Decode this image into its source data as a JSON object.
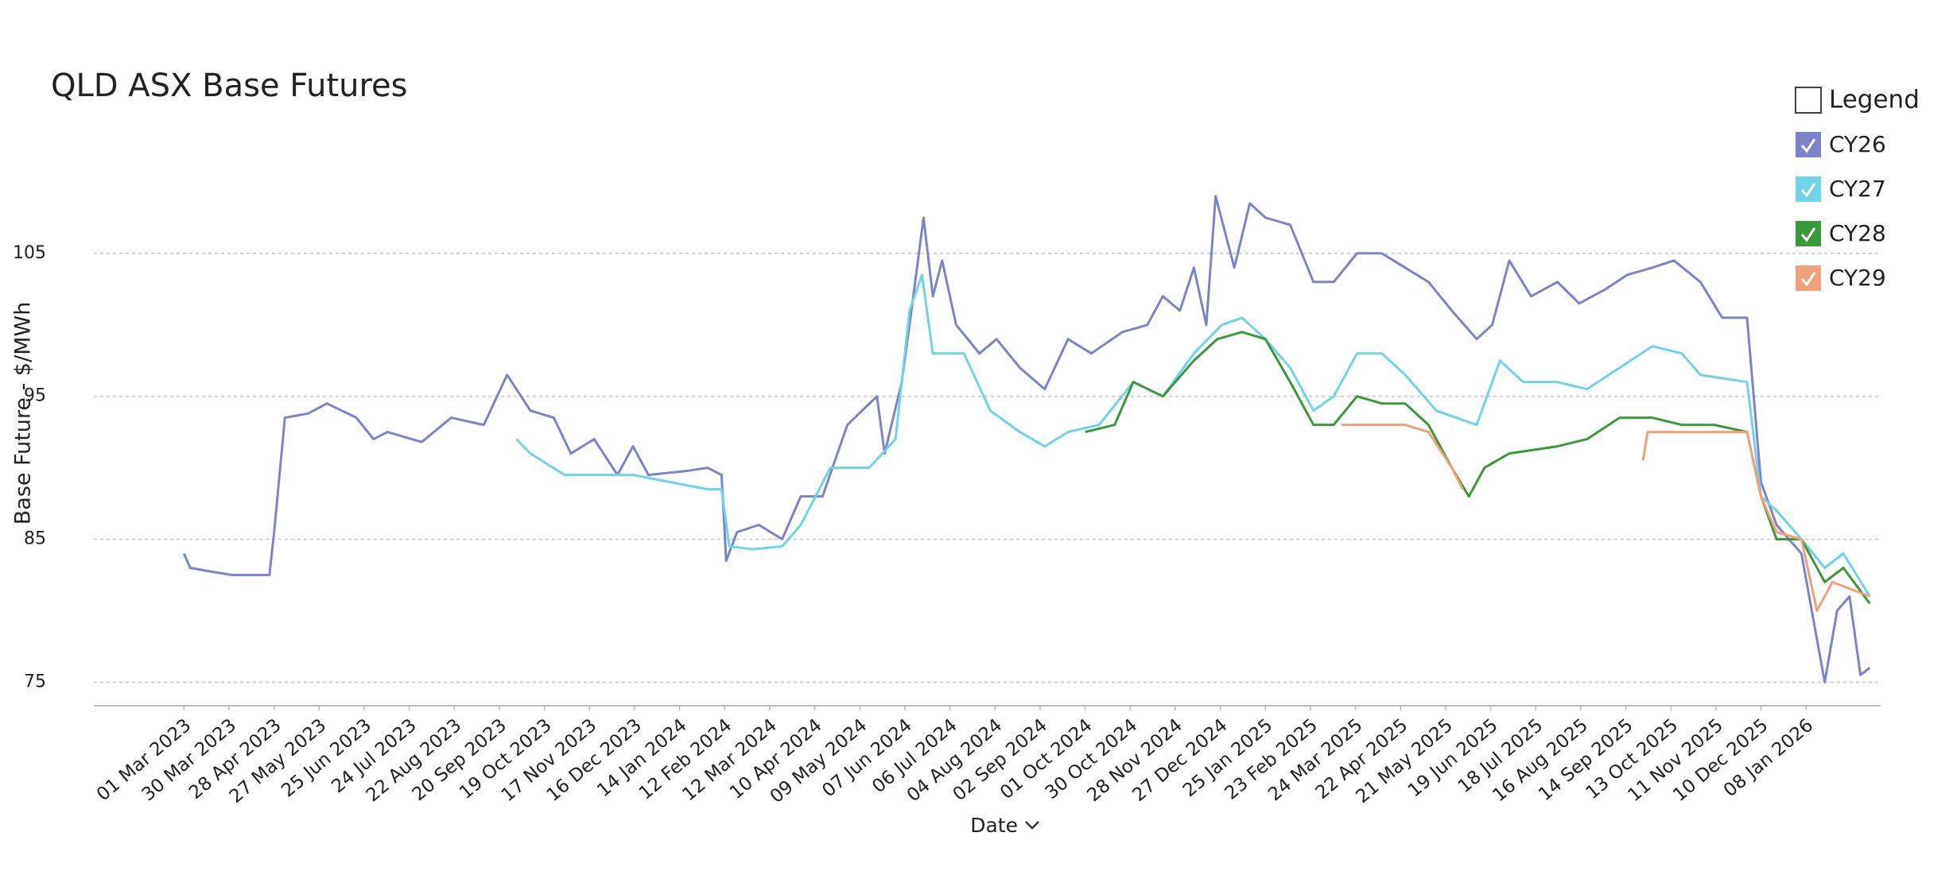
{
  "chart_data": {
    "type": "line",
    "title": "QLD ASX Base Futures",
    "x_label": "Date",
    "y_label": "Base Future - $/MWh",
    "ylim": [
      73.35,
      114
    ],
    "yticks": [
      75,
      85,
      95,
      105
    ],
    "grid": true,
    "xlim": [
      "2023-01-02",
      "2026-02-25"
    ],
    "xticks": [
      {
        "value": "2023-03-01",
        "label": "01 Mar 2023"
      },
      {
        "value": "2023-03-30",
        "label": "30 Mar 2023"
      },
      {
        "value": "2023-04-28",
        "label": "28 Apr 2023"
      },
      {
        "value": "2023-05-27",
        "label": "27 May 2023"
      },
      {
        "value": "2023-06-25",
        "label": "25 Jun 2023"
      },
      {
        "value": "2023-07-24",
        "label": "24 Jul 2023"
      },
      {
        "value": "2023-08-22",
        "label": "22 Aug 2023"
      },
      {
        "value": "2023-09-20",
        "label": "20 Sep 2023"
      },
      {
        "value": "2023-10-19",
        "label": "19 Oct 2023"
      },
      {
        "value": "2023-11-17",
        "label": "17 Nov 2023"
      },
      {
        "value": "2023-12-16",
        "label": "16 Dec 2023"
      },
      {
        "value": "2024-01-14",
        "label": "14 Jan 2024"
      },
      {
        "value": "2024-02-12",
        "label": "12 Feb 2024"
      },
      {
        "value": "2024-03-12",
        "label": "12 Mar 2024"
      },
      {
        "value": "2024-04-10",
        "label": "10 Apr 2024"
      },
      {
        "value": "2024-05-09",
        "label": "09 May 2024"
      },
      {
        "value": "2024-06-07",
        "label": "07 Jun 2024"
      },
      {
        "value": "2024-07-06",
        "label": "06 Jul 2024"
      },
      {
        "value": "2024-08-04",
        "label": "04 Aug 2024"
      },
      {
        "value": "2024-09-02",
        "label": "02 Sep 2024"
      },
      {
        "value": "2024-10-01",
        "label": "01 Oct 2024"
      },
      {
        "value": "2024-10-30",
        "label": "30 Oct 2024"
      },
      {
        "value": "2024-11-28",
        "label": "28 Nov 2024"
      },
      {
        "value": "2024-12-27",
        "label": "27 Dec 2024"
      },
      {
        "value": "2025-01-25",
        "label": "25 Jan 2025"
      },
      {
        "value": "2025-02-23",
        "label": "23 Feb 2025"
      },
      {
        "value": "2025-03-24",
        "label": "24 Mar 2025"
      },
      {
        "value": "2025-04-22",
        "label": "22 Apr 2025"
      },
      {
        "value": "2025-05-21",
        "label": "21 May 2025"
      },
      {
        "value": "2025-06-19",
        "label": "19 Jun 2025"
      },
      {
        "value": "2025-07-18",
        "label": "18 Jul 2025"
      },
      {
        "value": "2025-08-16",
        "label": "16 Aug 2025"
      },
      {
        "value": "2025-09-14",
        "label": "14 Sep 2025"
      },
      {
        "value": "2025-10-13",
        "label": "13 Oct 2025"
      },
      {
        "value": "2025-11-11",
        "label": "11 Nov 2025"
      },
      {
        "value": "2025-12-10",
        "label": "10 Dec 2025"
      },
      {
        "value": "2026-01-08",
        "label": "08 Jan 2026"
      }
    ],
    "legend": {
      "title": "Legend",
      "position": "top-right"
    },
    "series": [
      {
        "name": "CY26",
        "color": "#7b84c8",
        "x": [
          "2023-03-01",
          "2023-03-05",
          "2023-03-15",
          "2023-04-01",
          "2023-04-25",
          "2023-04-28",
          "2023-05-05",
          "2023-05-20",
          "2023-06-01",
          "2023-06-20",
          "2023-07-01",
          "2023-07-10",
          "2023-08-01",
          "2023-08-20",
          "2023-09-10",
          "2023-09-25",
          "2023-10-10",
          "2023-10-25",
          "2023-11-05",
          "2023-11-20",
          "2023-12-05",
          "2023-12-15",
          "2023-12-25",
          "2024-01-20",
          "2024-02-01",
          "2024-02-10",
          "2024-02-13",
          "2024-02-20",
          "2024-03-05",
          "2024-03-20",
          "2024-04-01",
          "2024-04-15",
          "2024-05-01",
          "2024-05-20",
          "2024-05-25",
          "2024-06-05",
          "2024-06-10",
          "2024-06-19",
          "2024-06-25",
          "2024-07-01",
          "2024-07-10",
          "2024-07-25",
          "2024-08-05",
          "2024-08-20",
          "2024-09-05",
          "2024-09-20",
          "2024-10-05",
          "2024-10-25",
          "2024-11-10",
          "2024-11-20",
          "2024-12-01",
          "2024-12-10",
          "2024-12-18",
          "2024-12-24",
          "2025-01-05",
          "2025-01-15",
          "2025-01-25",
          "2025-02-10",
          "2025-02-25",
          "2025-03-10",
          "2025-03-25",
          "2025-04-10",
          "2025-04-25",
          "2025-05-10",
          "2025-05-25",
          "2025-06-10",
          "2025-06-20",
          "2025-07-01",
          "2025-07-15",
          "2025-08-01",
          "2025-08-15",
          "2025-09-01",
          "2025-09-15",
          "2025-10-01",
          "2025-10-15",
          "2025-11-01",
          "2025-11-15",
          "2025-12-01",
          "2025-12-10",
          "2025-12-20",
          "2026-01-05",
          "2026-01-15",
          "2026-01-20",
          "2026-01-28",
          "2026-02-05",
          "2026-02-12",
          "2026-02-18"
        ],
        "values": [
          84,
          83,
          82.8,
          82.5,
          82.5,
          85.5,
          93.5,
          93.8,
          94.5,
          93.5,
          92,
          92.5,
          91.8,
          93.5,
          93,
          96.5,
          94,
          93.5,
          91,
          92,
          89.5,
          91.5,
          89.5,
          89.8,
          90,
          89.5,
          83.5,
          85.5,
          86,
          85,
          88,
          88,
          93,
          95,
          91,
          96,
          100,
          107.5,
          102,
          104.5,
          100,
          98,
          99,
          97,
          95.5,
          99,
          98,
          99.5,
          100,
          102,
          101,
          104,
          100,
          109,
          104,
          108.5,
          107.5,
          107,
          103,
          103,
          105,
          105,
          104,
          103,
          101,
          99,
          100,
          104.5,
          102,
          103,
          101.5,
          102.5,
          103.5,
          104,
          104.5,
          103,
          100.5,
          100.5,
          89,
          86,
          84,
          78,
          75,
          80,
          81,
          75.5,
          76
        ]
      },
      {
        "name": "CY27",
        "color": "#6fd3ea",
        "x": [
          "2023-10-01",
          "2023-10-10",
          "2023-11-01",
          "2023-12-15",
          "2024-02-01",
          "2024-02-10",
          "2024-02-15",
          "2024-03-01",
          "2024-03-20",
          "2024-04-01",
          "2024-04-20",
          "2024-05-15",
          "2024-06-01",
          "2024-06-10",
          "2024-06-18",
          "2024-06-25",
          "2024-07-15",
          "2024-08-01",
          "2024-08-20",
          "2024-09-05",
          "2024-09-20",
          "2024-10-10",
          "2024-11-01",
          "2024-11-20",
          "2024-12-10",
          "2024-12-28",
          "2025-01-10",
          "2025-01-25",
          "2025-02-10",
          "2025-02-25",
          "2025-03-10",
          "2025-03-25",
          "2025-04-10",
          "2025-04-25",
          "2025-05-15",
          "2025-06-10",
          "2025-06-25",
          "2025-07-10",
          "2025-08-01",
          "2025-08-20",
          "2025-09-10",
          "2025-10-01",
          "2025-10-20",
          "2025-11-01",
          "2025-12-01",
          "2025-12-10",
          "2025-12-20",
          "2026-01-05",
          "2026-01-20",
          "2026-02-01",
          "2026-02-18"
        ],
        "values": [
          92,
          91,
          89.5,
          89.5,
          88.5,
          88.5,
          84.5,
          84.3,
          84.5,
          86,
          90,
          90,
          92,
          101,
          103.5,
          98,
          98,
          94,
          92.5,
          91.5,
          92.5,
          93,
          96,
          95,
          98,
          100,
          100.5,
          99,
          97,
          94,
          95,
          98,
          98,
          96.5,
          94,
          93,
          97.5,
          96,
          96,
          95.5,
          97,
          98.5,
          98,
          96.5,
          96,
          88,
          87,
          85,
          83,
          84,
          81
        ]
      },
      {
        "name": "CY28",
        "color": "#3a9a3a",
        "x": [
          "2024-10-01",
          "2024-10-20",
          "2024-11-01",
          "2024-11-20",
          "2024-12-10",
          "2024-12-25",
          "2025-01-10",
          "2025-01-25",
          "2025-02-10",
          "2025-02-25",
          "2025-03-10",
          "2025-03-25",
          "2025-04-10",
          "2025-04-25",
          "2025-05-10",
          "2025-05-25",
          "2025-06-05",
          "2025-06-15",
          "2025-07-01",
          "2025-08-01",
          "2025-08-20",
          "2025-09-10",
          "2025-10-01",
          "2025-10-20",
          "2025-11-10",
          "2025-12-01",
          "2025-12-10",
          "2025-12-20",
          "2026-01-05",
          "2026-01-20",
          "2026-02-01",
          "2026-02-18"
        ],
        "values": [
          92.5,
          93,
          96,
          95,
          97.5,
          99,
          99.5,
          99,
          96,
          93,
          93,
          95,
          94.5,
          94.5,
          93,
          90,
          88,
          90,
          91,
          91.5,
          92,
          93.5,
          93.5,
          93,
          93,
          92.5,
          88,
          85,
          85,
          82,
          83,
          80.5
        ]
      },
      {
        "name": "CY29",
        "color": "#f0a07a",
        "x": [
          "2025-03-15",
          "2025-04-05",
          "2025-04-25",
          "2025-05-10",
          "2025-05-25",
          "2025-06-01",
          "2025-07-15",
          "2025-09-25",
          "2025-09-28",
          "2025-11-01",
          "2025-12-01",
          "2025-12-10",
          "2025-12-20",
          "2026-01-05",
          "2026-01-15",
          "2026-01-25",
          "2026-02-18"
        ],
        "values": [
          93,
          93,
          93,
          92.5,
          90,
          88.5,
          null,
          90.5,
          92.5,
          92.5,
          92.5,
          88,
          85.5,
          85,
          80,
          82,
          81
        ]
      }
    ]
  }
}
